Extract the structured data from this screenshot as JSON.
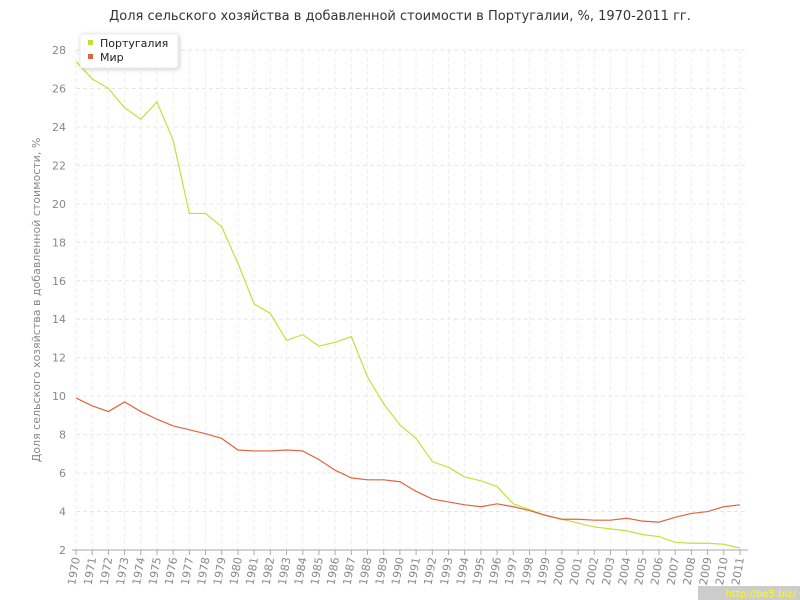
{
  "chart_data": {
    "type": "line",
    "title": "Доля сельского хозяйства в добавленной стоимости в Португалии, %, 1970-2011 гг.",
    "y_label": "Доля сельского хозяйства в добавленной стоимости, %",
    "categories": [
      "1970",
      "1971",
      "1972",
      "1973",
      "1974",
      "1975",
      "1976",
      "1977",
      "1978",
      "1979",
      "1980",
      "1981",
      "1982",
      "1983",
      "1984",
      "1985",
      "1986",
      "1987",
      "1988",
      "1989",
      "1990",
      "1991",
      "1992",
      "1993",
      "1994",
      "1995",
      "1996",
      "1997",
      "1998",
      "1999",
      "2000",
      "2001",
      "2002",
      "2003",
      "2004",
      "2005",
      "2006",
      "2007",
      "2008",
      "2009",
      "2010",
      "2011"
    ],
    "series": [
      {
        "name": "Португалия",
        "color": "#c5df3a",
        "values": [
          27.4,
          26.5,
          26.0,
          25.0,
          24.4,
          25.3,
          23.3,
          19.5,
          19.5,
          18.8,
          16.9,
          14.8,
          14.3,
          12.9,
          13.2,
          12.6,
          12.8,
          13.1,
          11.0,
          9.6,
          8.5,
          7.8,
          6.6,
          6.3,
          5.8,
          5.6,
          5.3,
          4.4,
          4.1,
          3.8,
          3.6,
          3.4,
          3.2,
          3.1,
          3.0,
          2.8,
          2.7,
          2.4,
          2.35,
          2.35,
          2.3,
          2.1
        ]
      },
      {
        "name": "Мир",
        "color": "#e0643c",
        "values": [
          9.9,
          9.5,
          9.2,
          9.7,
          9.2,
          8.8,
          8.45,
          8.25,
          8.05,
          7.8,
          7.2,
          7.15,
          7.15,
          7.2,
          7.15,
          6.7,
          6.15,
          5.75,
          5.65,
          5.65,
          5.55,
          5.05,
          4.65,
          4.5,
          4.35,
          4.25,
          4.4,
          4.25,
          4.05,
          3.8,
          3.6,
          3.6,
          3.55,
          3.55,
          3.65,
          3.5,
          3.45,
          3.7,
          3.9,
          4.0,
          4.25,
          4.35
        ]
      }
    ],
    "ylim": [
      2,
      28
    ],
    "yticks": [
      2,
      4,
      6,
      8,
      10,
      12,
      14,
      16,
      18,
      20,
      22,
      24,
      26,
      28
    ],
    "grid": true,
    "legend": "top-left",
    "watermark": "http://be5.biz/"
  }
}
